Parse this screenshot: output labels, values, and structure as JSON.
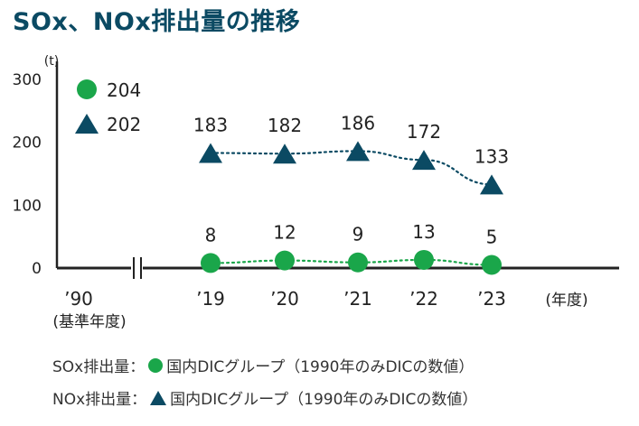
{
  "title": "SOx、NOx排出量の推移",
  "chart_data": {
    "type": "line",
    "unit": "(t)",
    "x_unit": "(年度)",
    "categories": [
      "’19",
      "’20",
      "’21",
      "’22",
      "’23"
    ],
    "baseline": {
      "label": "’90",
      "sublabel": "(基準年度)"
    },
    "ylim": [
      0,
      300
    ],
    "yticks": [
      0,
      100,
      200,
      300
    ],
    "series": [
      {
        "name": "NOx",
        "marker": "triangle",
        "color": "#0b4a63",
        "baseline_value": 202,
        "values": [
          183,
          182,
          186,
          172,
          133
        ]
      },
      {
        "name": "SOx",
        "marker": "circle",
        "color": "#1aa64a",
        "baseline_value": 204,
        "values": [
          8,
          12,
          9,
          13,
          5
        ]
      }
    ],
    "grid": false
  },
  "legend": {
    "sox_label": "SOx排出量：",
    "sox_text": "国内DICグループ（1990年のみDICの数値）",
    "nox_label": "NOx排出量：",
    "nox_text": "国内DICグループ（1990年のみDICの数値）"
  }
}
